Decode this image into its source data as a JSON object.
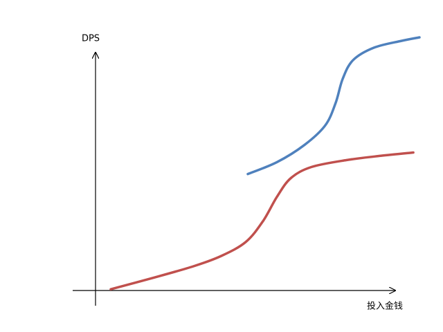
{
  "chart_data": {
    "type": "line",
    "y_label": "DPS",
    "x_label": "投入金钱",
    "xlim": [
      0,
      100
    ],
    "ylim": [
      0,
      100
    ],
    "series": [
      {
        "color": "#c0504d",
        "x": [
          4.7,
          17.5,
          30.3,
          38.9,
          46.4,
          51.7,
          56,
          60.3,
          66.7,
          77.4,
          88,
          98.1
        ],
        "values": [
          0.5,
          4.9,
          9.6,
          13.7,
          19.2,
          27.4,
          37,
          44.4,
          48.8,
          51.5,
          53.2,
          54.5
        ]
      },
      {
        "color": "#4f81bd",
        "x": [
          47,
          56,
          64.5,
          70.9,
          74.1,
          76.3,
          79.5,
          85.9,
          94.4,
          100
        ],
        "values": [
          46,
          50.7,
          57.5,
          65.2,
          74,
          83.6,
          91,
          95.9,
          98.6,
          100
        ]
      }
    ]
  }
}
